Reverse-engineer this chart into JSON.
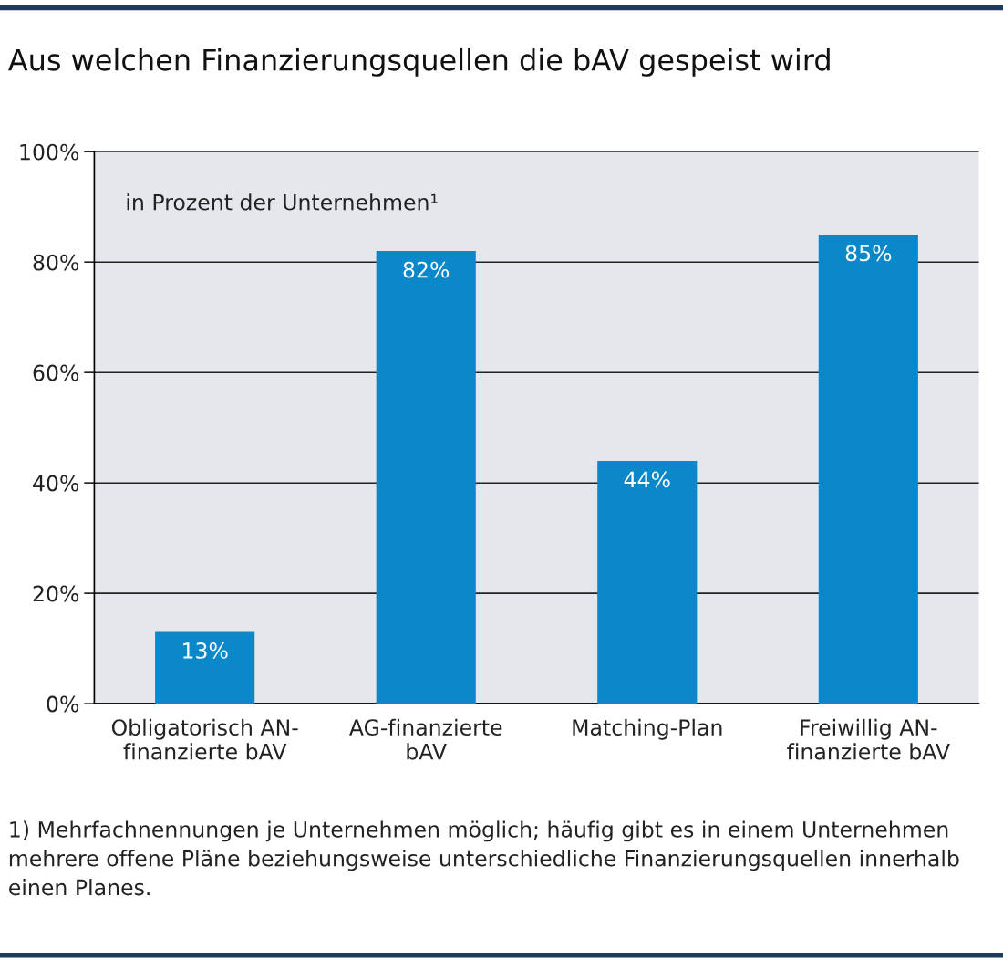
{
  "chart_data": {
    "type": "bar",
    "title": "Aus welchen Finanzierungsquellen die bAV gespeist wird",
    "subtitle": "in Prozent der Unternehmen¹",
    "categories": [
      "Obligatorisch AN-\nfinanzierte bAV",
      "AG-finanzierte\nbAV",
      "Matching-Plan",
      "Freiwillig AN-\nfinanzierte bAV"
    ],
    "values": [
      13,
      82,
      44,
      85
    ],
    "value_labels": [
      "13%",
      "82%",
      "44%",
      "85%"
    ],
    "color": "#0a88c9",
    "ylim": [
      0,
      100
    ],
    "yticks": [
      {
        "value": 0,
        "label": "0%"
      },
      {
        "value": 20,
        "label": "20%"
      },
      {
        "value": 40,
        "label": "40%"
      },
      {
        "value": 60,
        "label": "60%"
      },
      {
        "value": 80,
        "label": "80%"
      },
      {
        "value": 100,
        "label": "100%"
      }
    ],
    "grid": "y",
    "annotations": [
      "1) Mehrfachnennungen je Unternehmen möglich; häufig gibt es in einem Unternehmen mehrere offene Pläne beziehungsweise unterschiedliche Finanzierungsquellen innerhalb einen Planes."
    ]
  }
}
